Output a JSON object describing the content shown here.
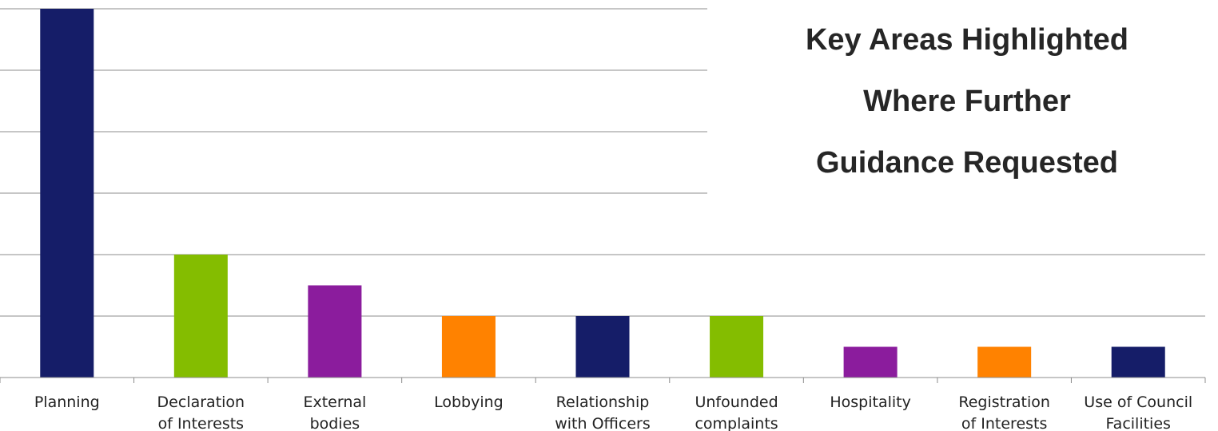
{
  "chart_data": {
    "type": "bar",
    "title": [
      "Key Areas Highlighted",
      "Where Further",
      "Guidance Requested"
    ],
    "categories": [
      [
        "Planning"
      ],
      [
        "Declaration",
        "of Interests"
      ],
      [
        "External",
        "bodies"
      ],
      [
        "Lobbying"
      ],
      [
        "Relationship",
        "with Officers"
      ],
      [
        "Unfounded",
        "complaints"
      ],
      [
        "Hospitality"
      ],
      [
        "Registration",
        "of Interests"
      ],
      [
        "Use of Council",
        "Facilities"
      ]
    ],
    "values": [
      12,
      4,
      3,
      2,
      2,
      2,
      1,
      1,
      1
    ],
    "colors": [
      "#151d68",
      "#84bd00",
      "#8b1c9d",
      "#ff8200",
      "#151d68",
      "#84bd00",
      "#8b1c9d",
      "#ff8200",
      "#151d68"
    ],
    "ylim": [
      0,
      12
    ],
    "grid": true,
    "xlabel": "",
    "ylabel": ""
  }
}
